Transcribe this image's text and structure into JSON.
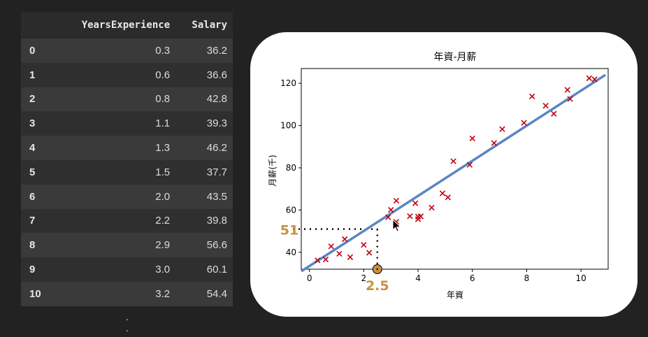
{
  "table": {
    "columns": [
      "",
      "YearsExperience",
      "Salary"
    ],
    "rows": [
      [
        "0",
        "0.3",
        "36.2"
      ],
      [
        "1",
        "0.6",
        "36.6"
      ],
      [
        "2",
        "0.8",
        "42.8"
      ],
      [
        "3",
        "1.1",
        "39.3"
      ],
      [
        "4",
        "1.3",
        "46.2"
      ],
      [
        "5",
        "1.5",
        "37.7"
      ],
      [
        "6",
        "2.0",
        "43.5"
      ],
      [
        "7",
        "2.2",
        "39.8"
      ],
      [
        "8",
        "2.9",
        "56.6"
      ],
      [
        "9",
        "3.0",
        "60.1"
      ],
      [
        "10",
        "3.2",
        "54.4"
      ]
    ]
  },
  "chart_data": {
    "type": "scatter",
    "title": "年資-月薪",
    "xlabel": "年資",
    "ylabel": "月薪(千)",
    "xlim": [
      -0.3,
      11.0
    ],
    "ylim": [
      32,
      127
    ],
    "xticks": [
      0,
      2,
      4,
      6,
      8,
      10
    ],
    "yticks": [
      40,
      60,
      80,
      100,
      120
    ],
    "grid": false,
    "points": [
      {
        "x": 0.3,
        "y": 36.2
      },
      {
        "x": 0.6,
        "y": 36.6
      },
      {
        "x": 0.8,
        "y": 42.8
      },
      {
        "x": 1.1,
        "y": 39.3
      },
      {
        "x": 1.3,
        "y": 46.2
      },
      {
        "x": 1.5,
        "y": 37.7
      },
      {
        "x": 2.0,
        "y": 43.5
      },
      {
        "x": 2.2,
        "y": 39.8
      },
      {
        "x": 2.9,
        "y": 56.6
      },
      {
        "x": 3.0,
        "y": 60.1
      },
      {
        "x": 3.2,
        "y": 54.4
      },
      {
        "x": 3.2,
        "y": 64.4
      },
      {
        "x": 3.7,
        "y": 57.1
      },
      {
        "x": 3.9,
        "y": 63.2
      },
      {
        "x": 4.0,
        "y": 55.7
      },
      {
        "x": 4.0,
        "y": 56.9
      },
      {
        "x": 4.1,
        "y": 57.0
      },
      {
        "x": 4.5,
        "y": 61.1
      },
      {
        "x": 4.9,
        "y": 67.9
      },
      {
        "x": 5.1,
        "y": 66.0
      },
      {
        "x": 5.3,
        "y": 83.1
      },
      {
        "x": 5.9,
        "y": 81.4
      },
      {
        "x": 6.0,
        "y": 93.9
      },
      {
        "x": 6.8,
        "y": 91.7
      },
      {
        "x": 7.1,
        "y": 98.3
      },
      {
        "x": 7.9,
        "y": 101.3
      },
      {
        "x": 8.2,
        "y": 113.8
      },
      {
        "x": 8.7,
        "y": 109.4
      },
      {
        "x": 9.0,
        "y": 105.6
      },
      {
        "x": 9.5,
        "y": 116.9
      },
      {
        "x": 9.6,
        "y": 112.6
      },
      {
        "x": 10.3,
        "y": 122.4
      },
      {
        "x": 10.5,
        "y": 121.9
      }
    ],
    "marker_color": "#c0000f",
    "regression_line": {
      "x": [
        -0.3,
        10.9
      ],
      "y": [
        31.0,
        124.0
      ],
      "color": "#5b85c4"
    },
    "annotation": {
      "x": 2.5,
      "y": 51,
      "x_label": "2.5",
      "y_label": "51",
      "color": "#c8913f"
    }
  }
}
